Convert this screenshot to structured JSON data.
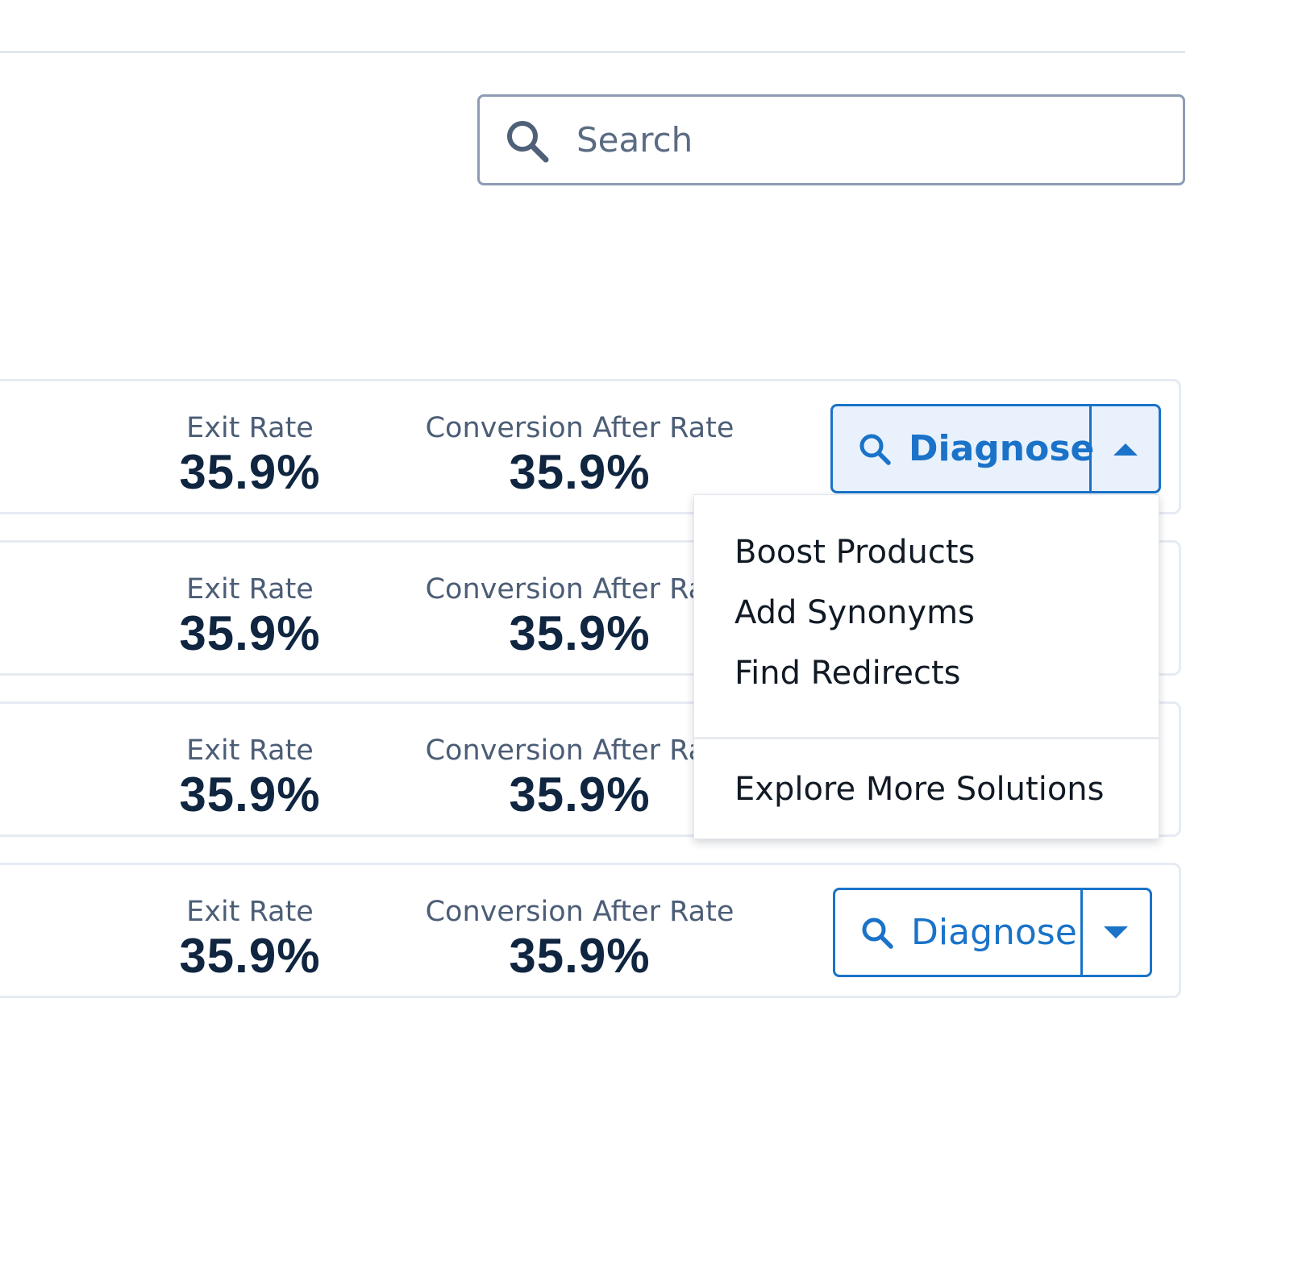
{
  "search": {
    "placeholder": "Search",
    "value": ""
  },
  "rows": [
    {
      "exit_label": "Exit Rate",
      "exit_value": "35.9%",
      "conversion_label": "Conversion After Rate",
      "conversion_value": "35.9%",
      "action_label": "Diagnose",
      "dropdown_open": true
    },
    {
      "exit_label": "Exit Rate",
      "exit_value": "35.9%",
      "conversion_label": "Conversion After Rate",
      "conversion_value": "35.9%"
    },
    {
      "exit_label": "Exit Rate",
      "exit_value": "35.9%",
      "conversion_label": "Conversion After Rate",
      "conversion_value": "35.9%"
    },
    {
      "exit_label": "Exit Rate",
      "exit_value": "35.9%",
      "conversion_label": "Conversion After Rate",
      "conversion_value": "35.9%",
      "action_label": "Diagnose",
      "dropdown_open": false
    }
  ],
  "dropdown_menu": {
    "items": [
      "Boost Products",
      "Add Synonyms",
      "Find Redirects"
    ],
    "footer_item": "Explore More Solutions"
  },
  "colors": {
    "accent": "#1a73c8",
    "accent_bg": "#e9f1fc",
    "value_text": "#0f2540",
    "label_text": "#4c5d76",
    "card_border": "#e6ebf3",
    "search_border": "#8c9cb3"
  },
  "icons": {
    "search": "search-icon",
    "caret_up": "caret-up-icon",
    "caret_down": "caret-down-icon"
  }
}
